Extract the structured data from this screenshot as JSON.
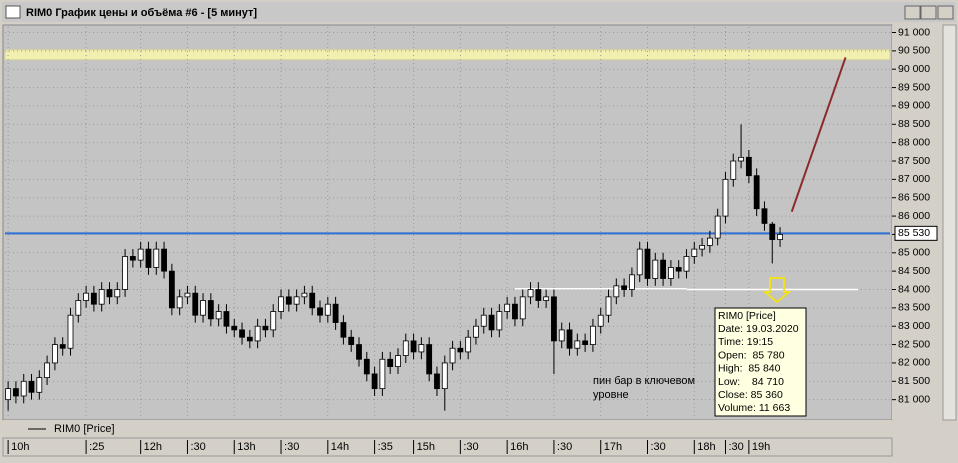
{
  "window": {
    "title": "RIM0 График цены и объёма #6 - [5 минут]"
  },
  "chart_data": {
    "type": "candlestick",
    "legend": "RIM0 [Price]",
    "categories": [
      "10h",
      null,
      null,
      null,
      null,
      null,
      null,
      null,
      null,
      null,
      ":25",
      null,
      null,
      null,
      null,
      null,
      null,
      "12h",
      null,
      null,
      null,
      null,
      null,
      ":30",
      null,
      null,
      null,
      null,
      null,
      "13h",
      null,
      null,
      null,
      null,
      null,
      ":30",
      null,
      null,
      null,
      null,
      null,
      "14h",
      null,
      null,
      null,
      null,
      null,
      ":35",
      null,
      null,
      null,
      null,
      "15h",
      null,
      null,
      null,
      null,
      null,
      ":30",
      null,
      null,
      null,
      null,
      null,
      "16h",
      null,
      null,
      null,
      null,
      null,
      ":30",
      null,
      null,
      null,
      null,
      null,
      "17h",
      null,
      null,
      null,
      null,
      null,
      ":30",
      null,
      null,
      null,
      null,
      null,
      "18h",
      null,
      null,
      null,
      ":30",
      null,
      null,
      "19h",
      null,
      null,
      null,
      null
    ],
    "open": [
      81000,
      81300,
      81100,
      81500,
      81200,
      81600,
      82000,
      82500,
      82400,
      83300,
      83700,
      83900,
      83600,
      84000,
      83800,
      84000,
      84900,
      84800,
      85100,
      84600,
      85100,
      84500,
      83500,
      83800,
      83900,
      83300,
      83700,
      83200,
      83400,
      83000,
      82900,
      82700,
      82600,
      83000,
      82900,
      83400,
      83800,
      83600,
      83800,
      83900,
      83500,
      83300,
      83600,
      83100,
      82700,
      82500,
      82100,
      81700,
      81300,
      82100,
      81900,
      82200,
      82600,
      82300,
      82500,
      81700,
      81300,
      82000,
      82400,
      82300,
      82700,
      83000,
      83300,
      82900,
      83400,
      83600,
      83200,
      83800,
      84000,
      83700,
      83800,
      82600,
      82900,
      82400,
      82600,
      82500,
      83000,
      83300,
      83800,
      84100,
      84000,
      84400,
      85100,
      84300,
      84800,
      84300,
      84600,
      84500,
      84900,
      85100,
      85200,
      85400,
      86000,
      87000,
      87500,
      87600,
      87100,
      86200,
      85780,
      85360
    ],
    "high": [
      81500,
      81500,
      81700,
      81700,
      81800,
      82200,
      82700,
      82700,
      83500,
      83900,
      84100,
      84100,
      84200,
      84200,
      84200,
      85100,
      85100,
      85300,
      85300,
      85300,
      85300,
      84700,
      84000,
      84100,
      84100,
      83900,
      83900,
      83600,
      83600,
      83200,
      83100,
      82900,
      83200,
      83200,
      83600,
      84000,
      84000,
      84000,
      84100,
      84100,
      83700,
      83800,
      83800,
      83300,
      82900,
      82700,
      82300,
      81900,
      82300,
      82300,
      82400,
      82800,
      82800,
      82700,
      82700,
      81900,
      82200,
      82600,
      82600,
      82900,
      83200,
      83500,
      83500,
      83600,
      83800,
      83800,
      84000,
      84200,
      84200,
      84000,
      84000,
      83100,
      83100,
      82800,
      82800,
      83200,
      83500,
      84000,
      84300,
      84300,
      84600,
      85300,
      85300,
      85000,
      85000,
      84800,
      84800,
      85100,
      85300,
      85400,
      85600,
      86200,
      87200,
      87700,
      88500,
      87800,
      87300,
      86400,
      85840,
      85700
    ],
    "low": [
      80700,
      80900,
      80900,
      81000,
      81000,
      81400,
      81800,
      82200,
      82200,
      83100,
      83500,
      83400,
      83400,
      83600,
      83600,
      83800,
      84600,
      84600,
      84400,
      84400,
      84300,
      83300,
      83300,
      83600,
      83100,
      83100,
      83000,
      83000,
      82800,
      82700,
      82500,
      82400,
      82400,
      82700,
      82700,
      83200,
      83400,
      83400,
      83600,
      83300,
      83100,
      83100,
      82900,
      82500,
      82300,
      81900,
      81500,
      81100,
      81100,
      81700,
      81700,
      82000,
      82100,
      82100,
      81500,
      81100,
      80700,
      81800,
      82100,
      82100,
      82500,
      82800,
      82700,
      82700,
      83200,
      83000,
      83000,
      83600,
      83500,
      83500,
      81700,
      82400,
      82200,
      82200,
      82300,
      82300,
      82800,
      83100,
      83600,
      83800,
      83800,
      84200,
      84100,
      84100,
      84100,
      84100,
      84300,
      84300,
      84700,
      84900,
      85000,
      85200,
      85800,
      86800,
      87300,
      86900,
      86000,
      85600,
      84710,
      85160
    ],
    "close": [
      81300,
      81100,
      81500,
      81200,
      81600,
      82000,
      82500,
      82400,
      83300,
      83700,
      83900,
      83600,
      84000,
      83800,
      84000,
      84900,
      84800,
      85100,
      84600,
      85100,
      84500,
      83500,
      83800,
      83900,
      83300,
      83700,
      83200,
      83400,
      83000,
      82900,
      82700,
      82600,
      83000,
      82900,
      83400,
      83800,
      83600,
      83800,
      83900,
      83500,
      83300,
      83600,
      83100,
      82700,
      82500,
      82100,
      81700,
      81300,
      82100,
      81900,
      82200,
      82600,
      82300,
      82500,
      81700,
      81300,
      82000,
      82400,
      82300,
      82700,
      83000,
      83300,
      82900,
      83400,
      83600,
      83200,
      83800,
      84000,
      83700,
      83800,
      82600,
      82900,
      82400,
      82600,
      82500,
      83000,
      83300,
      83800,
      84100,
      84000,
      84400,
      85100,
      84300,
      84800,
      84300,
      84600,
      84500,
      84900,
      85100,
      85200,
      85400,
      86000,
      87000,
      87500,
      87600,
      87100,
      86200,
      85800,
      85360,
      85500
    ],
    "up_color": "#ffffff",
    "down_color": "#000000",
    "xlim": [
      -0.4,
      113.1
    ],
    "ylim": [
      80500,
      91150
    ],
    "yticks": [
      {
        "value": 81000,
        "label": "81 000"
      },
      {
        "value": 81500,
        "label": "81 500"
      },
      {
        "value": 82000,
        "label": "82 000"
      },
      {
        "value": 82500,
        "label": "82 500"
      },
      {
        "value": 83000,
        "label": "83 000"
      },
      {
        "value": 83500,
        "label": "83 500"
      },
      {
        "value": 84000,
        "label": "84 000"
      },
      {
        "value": 84500,
        "label": "84 500"
      },
      {
        "value": 85000,
        "label": "85 000"
      },
      {
        "value": 85500,
        "label": "85 500"
      },
      {
        "value": 86000,
        "label": "86 000"
      },
      {
        "value": 86500,
        "label": "86 500"
      },
      {
        "value": 87000,
        "label": "87 000"
      },
      {
        "value": 87500,
        "label": "87 500"
      },
      {
        "value": 88000,
        "label": "88 000"
      },
      {
        "value": 88500,
        "label": "88 500"
      },
      {
        "value": 89000,
        "label": "89 000"
      },
      {
        "value": 89500,
        "label": "89 500"
      },
      {
        "value": 90000,
        "label": "90 000"
      },
      {
        "value": 90500,
        "label": "90 500"
      },
      {
        "value": 91000,
        "label": "91 000"
      }
    ],
    "grid": true,
    "band": {
      "from": 90260,
      "to": 90530,
      "color": "#f2f0b0"
    },
    "level": {
      "value": 85530,
      "label": "85 530",
      "color": "#2f6fd6"
    },
    "support_lines": [
      {
        "value": 84020,
        "x": [
          65,
          87
        ],
        "color": "#ffffff"
      },
      {
        "value": 84000,
        "x": [
          87,
          109
        ],
        "color": "#ffffff"
      }
    ],
    "trend_line": {
      "x": [
        100.5,
        107.4
      ],
      "y": [
        86120,
        90320
      ],
      "color": "#8b2a2a"
    },
    "annotation": [
      "пин бар в ключевом",
      "уровне"
    ],
    "tooltip": [
      "RIM0 [Price]",
      "Date: 19.03.2020",
      "Time: 19:15",
      "Open:  85 780",
      "High:  85 840",
      "Low:    84 710",
      "Close: 85 360",
      "Volume: 11 663"
    ]
  }
}
